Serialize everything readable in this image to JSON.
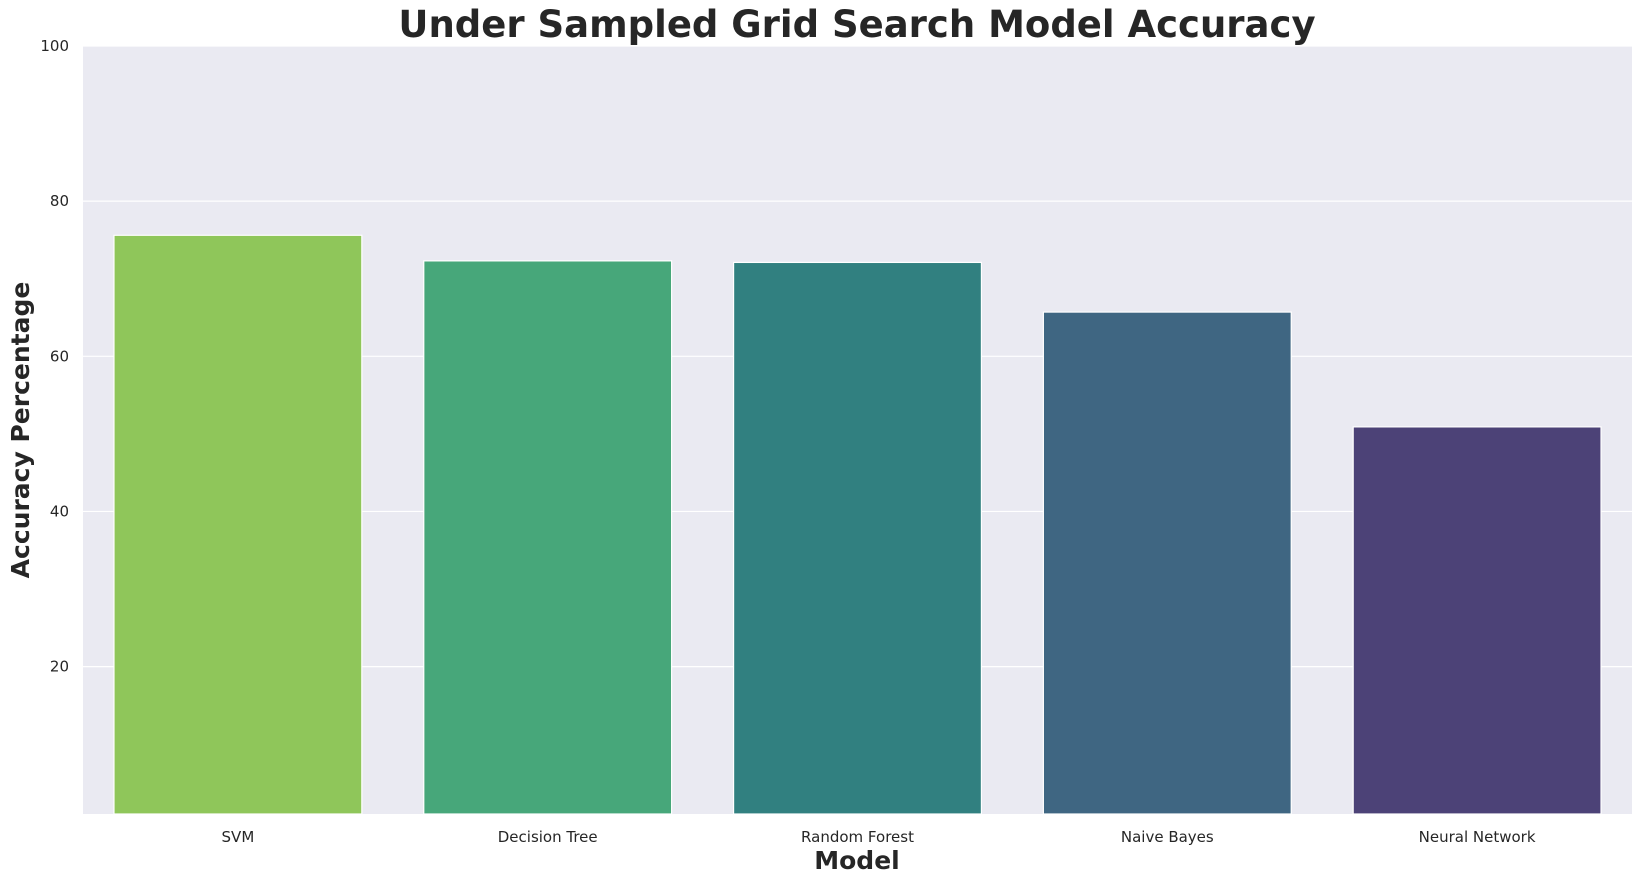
{
  "chart_data": {
    "type": "bar",
    "title": "Under Sampled Grid Search Model Accuracy",
    "xlabel": "Model",
    "ylabel": "Accuracy Percentage",
    "categories": [
      "SVM",
      "Decision Tree",
      "Random Forest",
      "Naive Bayes",
      "Neural Network"
    ],
    "values": [
      75.6,
      72.3,
      72.1,
      65.7,
      50.9
    ],
    "colors": [
      "#8fc65a",
      "#47a77a",
      "#318080",
      "#3f6682",
      "#4c4277"
    ],
    "ylim": [
      1,
      100
    ],
    "yticks": [
      20,
      40,
      60,
      80,
      100
    ],
    "grid": true,
    "background": "#eaeaf2",
    "gridColor": "#ffffff"
  }
}
